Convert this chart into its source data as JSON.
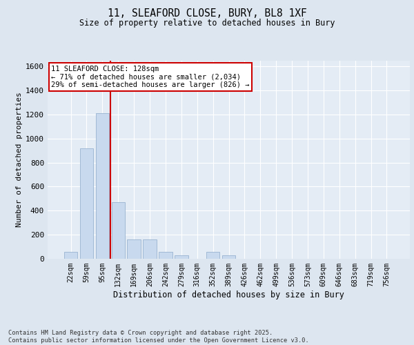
{
  "title_line1": "11, SLEAFORD CLOSE, BURY, BL8 1XF",
  "title_line2": "Size of property relative to detached houses in Bury",
  "xlabel": "Distribution of detached houses by size in Bury",
  "ylabel": "Number of detached properties",
  "categories": [
    "22sqm",
    "59sqm",
    "95sqm",
    "132sqm",
    "169sqm",
    "206sqm",
    "242sqm",
    "279sqm",
    "316sqm",
    "352sqm",
    "389sqm",
    "426sqm",
    "462sqm",
    "499sqm",
    "536sqm",
    "573sqm",
    "609sqm",
    "646sqm",
    "683sqm",
    "719sqm",
    "756sqm"
  ],
  "values": [
    55,
    920,
    1210,
    470,
    160,
    160,
    55,
    30,
    0,
    55,
    30,
    0,
    0,
    0,
    0,
    0,
    0,
    0,
    0,
    0,
    0
  ],
  "bar_color": "#c8d9ee",
  "bar_edge_color": "#99b3d0",
  "ref_line_color": "#cc0000",
  "annotation_title": "11 SLEAFORD CLOSE: 128sqm",
  "annotation_line2": "← 71% of detached houses are smaller (2,034)",
  "annotation_line3": "29% of semi-detached houses are larger (826) →",
  "annotation_box_color": "#ffffff",
  "annotation_box_edge_color": "#cc0000",
  "ylim": [
    0,
    1650
  ],
  "yticks": [
    0,
    200,
    400,
    600,
    800,
    1000,
    1200,
    1400,
    1600
  ],
  "bg_color": "#dde6f0",
  "plot_bg_color": "#e4ecf5",
  "grid_color": "#ffffff",
  "fig_bg_color": "#dde6f0",
  "footer_line1": "Contains HM Land Registry data © Crown copyright and database right 2025.",
  "footer_line2": "Contains public sector information licensed under the Open Government Licence v3.0."
}
